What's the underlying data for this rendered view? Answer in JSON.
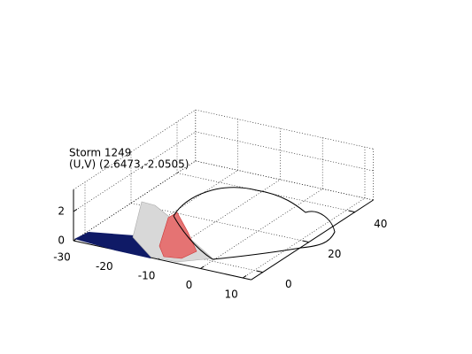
{
  "chart_data": {
    "type": "surface3d",
    "title": "Storm 1249",
    "subtitle": "(U,V) (2.6473,-2.0505)",
    "xlim": [
      -30,
      12
    ],
    "xticks": [
      -30,
      -20,
      -10,
      0,
      10
    ],
    "ylim": [
      -5,
      48
    ],
    "yticks": [
      0,
      20,
      40
    ],
    "zlim": [
      0,
      3.5
    ],
    "zticks": [
      0,
      2
    ],
    "grid": true
  }
}
